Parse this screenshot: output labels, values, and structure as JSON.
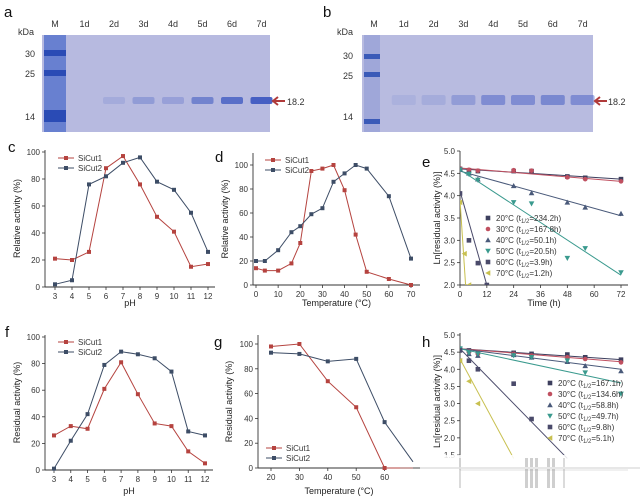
{
  "gels": [
    {
      "panel": "a",
      "unit_label": "kDa",
      "lanes": [
        "M",
        "1d",
        "2d",
        "3d",
        "4d",
        "5d",
        "6d",
        "7d"
      ],
      "markers": [
        "30",
        "25",
        "14"
      ],
      "band_label": "18.2",
      "band_intensity": [
        0,
        0.15,
        0.3,
        0.25,
        0.55,
        0.75,
        0.9
      ]
    },
    {
      "panel": "b",
      "unit_label": "kDa",
      "lanes": [
        "M",
        "1d",
        "2d",
        "3d",
        "4d",
        "5d",
        "6d",
        "7d"
      ],
      "markers": [
        "30",
        "25",
        "14"
      ],
      "band_label": "18.2",
      "band_intensity": [
        0.1,
        0.15,
        0.3,
        0.45,
        0.45,
        0.5,
        0.45
      ]
    }
  ],
  "colors": {
    "sicut1": "#b5433f",
    "sicut2": "#3d4d66",
    "gel_bg": "#b6b9e0",
    "band": "#3a55c0",
    "arrow": "#b03a3a",
    "t20": "#3d3f5e",
    "t30": "#c05060",
    "t40": "#4a5a7a",
    "t50": "#3a9a8e",
    "t60": "#4a4a6a",
    "t70": "#c8c050"
  },
  "chart_data": [
    {
      "panel": "c",
      "type": "line",
      "xlabel": "pH",
      "ylabel": "Relative activity (%)",
      "xlim": [
        3,
        12
      ],
      "ylim": [
        0,
        100
      ],
      "x": [
        3,
        4,
        5,
        6,
        7,
        8,
        9,
        10,
        11,
        12
      ],
      "xticks": [
        "3",
        "4",
        "5",
        "6",
        "7",
        "8",
        "9",
        "10",
        "11",
        "12"
      ],
      "yticks": [
        "0",
        "20",
        "40",
        "60",
        "80",
        "100"
      ],
      "legend_position": "top-left",
      "series": [
        {
          "name": "SiCut1",
          "values": [
            21,
            20,
            26,
            88,
            97,
            76,
            52,
            41,
            15,
            17
          ]
        },
        {
          "name": "SiCut2",
          "values": [
            2,
            5,
            76,
            82,
            92,
            96,
            78,
            72,
            55,
            26
          ]
        }
      ]
    },
    {
      "panel": "d",
      "type": "line",
      "xlabel": "Temperature (°C)",
      "ylabel": "Relative activity (%)",
      "xlim": [
        0,
        70
      ],
      "ylim": [
        0,
        100
      ],
      "xticks": [
        "0",
        "10",
        "20",
        "30",
        "40",
        "50",
        "60",
        "70"
      ],
      "yticks": [
        "0",
        "20",
        "40",
        "60",
        "80",
        "100"
      ],
      "legend_position": "top-left",
      "series": [
        {
          "name": "SiCut1",
          "x": [
            0,
            4,
            10,
            16,
            20,
            25,
            30,
            35,
            40,
            45,
            50,
            60,
            70
          ],
          "values": [
            14,
            12,
            12,
            18,
            35,
            95,
            97,
            100,
            79,
            42,
            11,
            5,
            0
          ]
        },
        {
          "name": "SiCut2",
          "x": [
            0,
            4,
            10,
            16,
            20,
            25,
            30,
            35,
            40,
            45,
            50,
            60,
            70
          ],
          "values": [
            20,
            20,
            29,
            44,
            49,
            59,
            64,
            86,
            93,
            100,
            97,
            74,
            22
          ]
        }
      ]
    },
    {
      "panel": "e",
      "type": "scatter",
      "xlabel": "Time (h)",
      "ylabel": "Ln[residual activity (%)]",
      "xlim": [
        0,
        72
      ],
      "ylim": [
        2.0,
        5.0
      ],
      "xticks": [
        "0",
        "12",
        "24",
        "36",
        "48",
        "60",
        "72"
      ],
      "yticks": [
        "2.0",
        "2.5",
        "3.0",
        "3.5",
        "4.0",
        "4.5",
        "5.0"
      ],
      "legend_position": "bottom-left",
      "series": [
        {
          "name": "20°C",
          "half_life": "234.2h",
          "marker": "square",
          "x": [
            0,
            4,
            8,
            24,
            32,
            48,
            56,
            72
          ],
          "values": [
            4.6,
            4.57,
            4.55,
            4.55,
            4.55,
            4.43,
            4.4,
            4.37
          ],
          "fit": [
            [
              0,
              4.6
            ],
            [
              72,
              4.37
            ]
          ]
        },
        {
          "name": "30°C",
          "half_life": "167.8h",
          "marker": "circle",
          "x": [
            0,
            4,
            8,
            24,
            32,
            48,
            56,
            72
          ],
          "values": [
            4.61,
            4.58,
            4.56,
            4.57,
            4.56,
            4.41,
            4.37,
            4.32
          ],
          "fit": [
            [
              0,
              4.62
            ],
            [
              72,
              4.32
            ]
          ]
        },
        {
          "name": "40°C",
          "half_life": "50.1h",
          "marker": "triangle-up",
          "x": [
            0,
            4,
            8,
            24,
            32,
            48,
            56,
            72
          ],
          "values": [
            4.6,
            4.5,
            4.37,
            4.22,
            4.06,
            3.85,
            3.74,
            3.6
          ],
          "fit": [
            [
              0,
              4.55
            ],
            [
              72,
              3.55
            ]
          ]
        },
        {
          "name": "50°C",
          "half_life": "20.5h",
          "marker": "triangle-down",
          "x": [
            0,
            4,
            8,
            24,
            32,
            48,
            56,
            72
          ],
          "values": [
            4.58,
            4.48,
            4.35,
            3.85,
            3.82,
            2.6,
            2.82,
            2.28
          ],
          "fit": [
            [
              0,
              4.58
            ],
            [
              72,
              2.22
            ]
          ]
        },
        {
          "name": "60°C",
          "half_life": "3.9h",
          "marker": "square",
          "x": [
            0,
            4,
            8,
            12
          ],
          "values": [
            4.05,
            3.0,
            2.49,
            2.0
          ],
          "fit": [
            [
              0,
              4.1
            ],
            [
              12,
              2.0
            ]
          ]
        },
        {
          "name": "70°C",
          "half_life": "1.2h",
          "marker": "triangle-left",
          "x": [
            0,
            2,
            4
          ],
          "values": [
            3.85,
            2.7,
            2.0
          ],
          "fit": [
            [
              0,
              3.9
            ],
            [
              2.5,
              2.0
            ]
          ]
        }
      ]
    },
    {
      "panel": "f",
      "type": "line",
      "xlabel": "pH",
      "ylabel": "Residual activity (%)",
      "xlim": [
        3,
        12
      ],
      "ylim": [
        0,
        100
      ],
      "x": [
        3,
        4,
        5,
        6,
        7,
        8,
        9,
        10,
        11,
        12
      ],
      "xticks": [
        "3",
        "4",
        "5",
        "6",
        "7",
        "8",
        "9",
        "10",
        "11",
        "12"
      ],
      "yticks": [
        "0",
        "20",
        "40",
        "60",
        "80",
        "100"
      ],
      "legend_position": "top-left",
      "series": [
        {
          "name": "SiCut1",
          "values": [
            26,
            33,
            31,
            61,
            81,
            57,
            35,
            33,
            14,
            5
          ]
        },
        {
          "name": "SiCut2",
          "values": [
            1,
            22,
            42,
            79,
            89,
            87,
            84,
            74,
            29,
            26
          ]
        }
      ]
    },
    {
      "panel": "g",
      "type": "line",
      "xlabel": "Temperature (°C)",
      "ylabel": "Residual activity (%)",
      "xlim": [
        20,
        70
      ],
      "ylim": [
        0,
        100
      ],
      "x": [
        20,
        30,
        40,
        50,
        60,
        70
      ],
      "xticks": [
        "20",
        "30",
        "40",
        "50",
        "60"
      ],
      "yticks": [
        "0",
        "20",
        "40",
        "60",
        "80",
        "100"
      ],
      "legend_position": "bottom-left",
      "series": [
        {
          "name": "SiCut1",
          "values": [
            98,
            100,
            70,
            49,
            0,
            0
          ]
        },
        {
          "name": "SiCut2",
          "values": [
            93,
            92,
            86,
            88,
            37,
            5
          ]
        }
      ]
    },
    {
      "panel": "h",
      "type": "scatter",
      "xlabel": "Time (h)",
      "ylabel": "Ln[residual activity (%)]",
      "xlim": [
        0,
        72
      ],
      "ylim": [
        1.5,
        5.0
      ],
      "yticks": [
        "1.5",
        "2.0",
        "2.5",
        "3.0",
        "3.5",
        "4.0",
        "4.5",
        "5.0"
      ],
      "legend_position": "right",
      "series": [
        {
          "name": "20°C",
          "half_life": "167.1h",
          "marker": "square",
          "x": [
            0,
            4,
            8,
            24,
            32,
            48,
            56,
            72
          ],
          "values": [
            4.6,
            4.55,
            4.5,
            4.48,
            4.45,
            4.43,
            4.35,
            4.28
          ],
          "fit": [
            [
              0,
              4.6
            ],
            [
              72,
              4.28
            ]
          ]
        },
        {
          "name": "30°C",
          "half_life": "134.6h",
          "marker": "circle",
          "x": [
            0,
            4,
            8,
            24,
            32,
            48,
            56,
            72
          ],
          "values": [
            4.58,
            4.5,
            4.45,
            4.45,
            4.4,
            4.35,
            4.3,
            4.2
          ],
          "fit": [
            [
              0,
              4.6
            ],
            [
              72,
              4.22
            ]
          ]
        },
        {
          "name": "40°C",
          "half_life": "58.8h",
          "marker": "triangle-up",
          "x": [
            0,
            4,
            8,
            24,
            32,
            48,
            56,
            72
          ],
          "values": [
            4.58,
            4.45,
            4.4,
            4.42,
            4.35,
            4.22,
            4.1,
            3.95
          ],
          "fit": [
            [
              0,
              4.6
            ],
            [
              72,
              4.0
            ]
          ]
        },
        {
          "name": "50°C",
          "half_life": "49.7h",
          "marker": "triangle-down",
          "x": [
            0,
            4,
            8,
            24,
            32,
            48,
            56,
            72
          ],
          "values": [
            4.6,
            4.48,
            4.45,
            4.4,
            4.35,
            4.25,
            3.9,
            3.28
          ],
          "fit": [
            [
              0,
              4.6
            ],
            [
              72,
              3.6
            ]
          ]
        },
        {
          "name": "60°C",
          "half_life": "9.8h",
          "marker": "square",
          "x": [
            0,
            4,
            8,
            24,
            32
          ],
          "values": [
            4.55,
            4.25,
            4.0,
            3.58,
            2.55
          ],
          "fit": [
            [
              0,
              4.6
            ],
            [
              48,
              1.4
            ]
          ]
        },
        {
          "name": "70°C",
          "half_life": "5.1h",
          "marker": "triangle-left",
          "x": [
            0,
            4,
            8
          ],
          "values": [
            4.25,
            3.65,
            3.0
          ],
          "fit": [
            [
              0,
              4.3
            ],
            [
              24,
              1.4
            ]
          ]
        }
      ]
    }
  ]
}
